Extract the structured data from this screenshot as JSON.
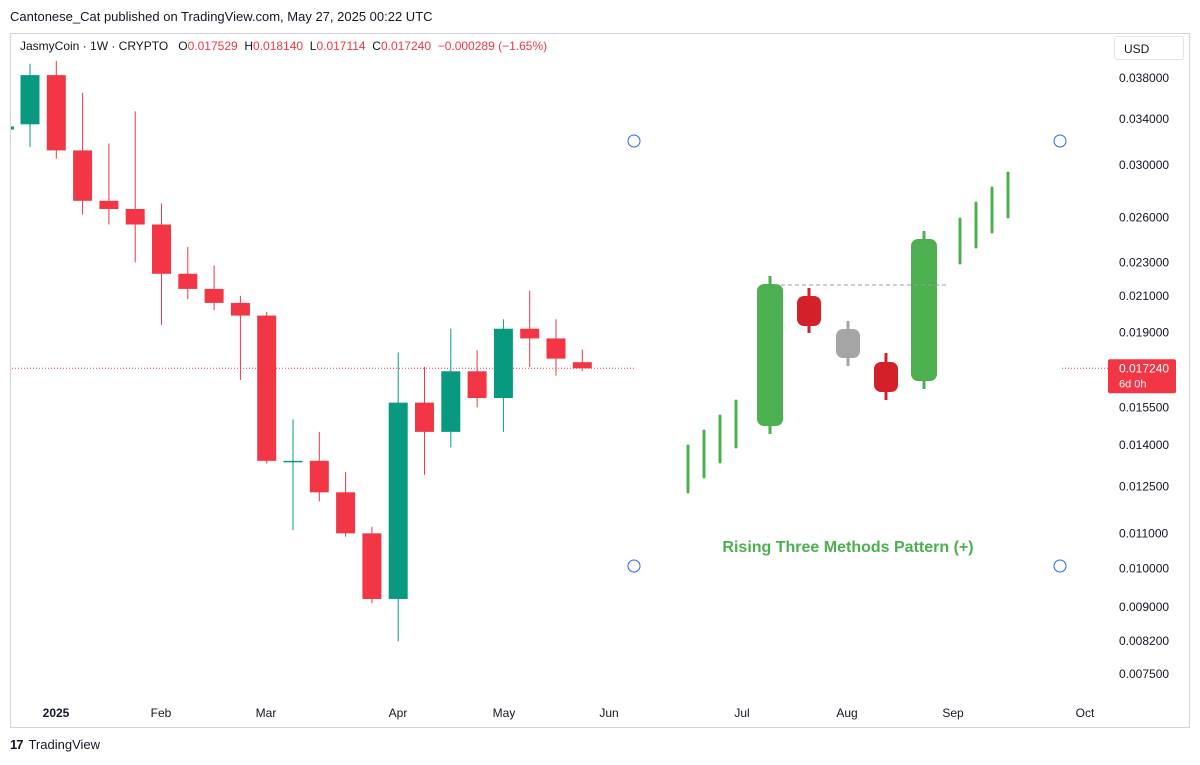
{
  "header": {
    "published_text": "Cantonese_Cat published on TradingView.com, May 27, 2025 00:22 UTC"
  },
  "legend": {
    "symbol": "JasmyCoin · 1W · CRYPTO",
    "o_label": "O",
    "o_value": "0.017529",
    "h_label": "H",
    "h_value": "0.018140",
    "l_label": "L",
    "l_value": "0.017114",
    "c_label": "C",
    "c_value": "0.017240",
    "change": "−0.000289 (−1.65%)"
  },
  "toolbar": {
    "currency": "USD"
  },
  "price_label": {
    "price": "0.017240",
    "countdown": "6d 0h"
  },
  "footer": {
    "brand": "TradingView"
  },
  "colors": {
    "up": "#089981",
    "down": "#f23645",
    "pattern_green": "#4caf50",
    "pattern_red": "#d32029",
    "pattern_gray": "#a5a5a5",
    "price_line": "#f23645",
    "anchor": "#2962ff"
  },
  "chart_data": [
    {
      "type": "candlestick",
      "title": "JasmyCoin · 1W · CRYPTO",
      "y_scale": "log",
      "y_ticks": [
        "0.038000",
        "0.034000",
        "0.030000",
        "0.026000",
        "0.023000",
        "0.021000",
        "0.019000",
        "0.015500",
        "0.014000",
        "0.012500",
        "0.011000",
        "0.010000",
        "0.009000",
        "0.008200",
        "0.007500"
      ],
      "x_ticks": [
        "2025",
        "Feb",
        "Mar",
        "Apr",
        "May",
        "Jun",
        "Jul",
        "Aug",
        "Sep",
        "Oct"
      ],
      "current_price": 0.01724,
      "candles": [
        {
          "week": "2024-12-30",
          "o": 0.0335,
          "h": 0.0395,
          "l": 0.0315,
          "c": 0.0383
        },
        {
          "week": "2025-01-06",
          "o": 0.0383,
          "h": 0.0398,
          "l": 0.0305,
          "c": 0.0312
        },
        {
          "week": "2025-01-13",
          "o": 0.0312,
          "h": 0.0365,
          "l": 0.0262,
          "c": 0.0272
        },
        {
          "week": "2025-01-20",
          "o": 0.0272,
          "h": 0.0318,
          "l": 0.0255,
          "c": 0.0266
        },
        {
          "week": "2025-01-27",
          "o": 0.0266,
          "h": 0.0347,
          "l": 0.023,
          "c": 0.0255
        },
        {
          "week": "2025-02-03",
          "o": 0.0255,
          "h": 0.027,
          "l": 0.0194,
          "c": 0.0223
        },
        {
          "week": "2025-02-10",
          "o": 0.0223,
          "h": 0.024,
          "l": 0.0208,
          "c": 0.0214
        },
        {
          "week": "2025-02-17",
          "o": 0.0214,
          "h": 0.0228,
          "l": 0.0202,
          "c": 0.0206
        },
        {
          "week": "2025-02-24",
          "o": 0.0206,
          "h": 0.021,
          "l": 0.0167,
          "c": 0.0199
        },
        {
          "week": "2025-03-03",
          "o": 0.0199,
          "h": 0.0201,
          "l": 0.0133,
          "c": 0.0134
        },
        {
          "week": "2025-03-10",
          "o": 0.0134,
          "h": 0.015,
          "l": 0.0111,
          "c": 0.0134
        },
        {
          "week": "2025-03-17",
          "o": 0.0134,
          "h": 0.0145,
          "l": 0.012,
          "c": 0.0123
        },
        {
          "week": "2025-03-24",
          "o": 0.0123,
          "h": 0.013,
          "l": 0.0109,
          "c": 0.011
        },
        {
          "week": "2025-03-31",
          "o": 0.011,
          "h": 0.0112,
          "l": 0.0091,
          "c": 0.0092
        },
        {
          "week": "2025-04-07",
          "o": 0.0092,
          "h": 0.018,
          "l": 0.0082,
          "c": 0.0157
        },
        {
          "week": "2025-04-14",
          "o": 0.0157,
          "h": 0.0173,
          "l": 0.0129,
          "c": 0.0145
        },
        {
          "week": "2025-04-21",
          "o": 0.0145,
          "h": 0.0192,
          "l": 0.0139,
          "c": 0.0171
        },
        {
          "week": "2025-04-28",
          "o": 0.0171,
          "h": 0.0181,
          "l": 0.0155,
          "c": 0.0159
        },
        {
          "week": "2025-05-05",
          "o": 0.0159,
          "h": 0.0197,
          "l": 0.0145,
          "c": 0.0192
        },
        {
          "week": "2025-05-12",
          "o": 0.0192,
          "h": 0.0213,
          "l": 0.0173,
          "c": 0.0187
        },
        {
          "week": "2025-05-19",
          "o": 0.0187,
          "h": 0.0197,
          "l": 0.0169,
          "c": 0.0177
        },
        {
          "week": "2025-05-26",
          "o": 0.017529,
          "h": 0.01814,
          "l": 0.017114,
          "c": 0.01724
        }
      ]
    },
    {
      "type": "annotation",
      "title": "Rising Three Methods Pattern (+)",
      "lead_in_bars": 4,
      "pattern_candles": [
        {
          "color": "green",
          "dir": "up"
        },
        {
          "color": "red",
          "dir": "down"
        },
        {
          "color": "gray",
          "dir": "down"
        },
        {
          "color": "red",
          "dir": "down"
        },
        {
          "color": "green",
          "dir": "up"
        }
      ],
      "follow_bars": 4
    }
  ]
}
